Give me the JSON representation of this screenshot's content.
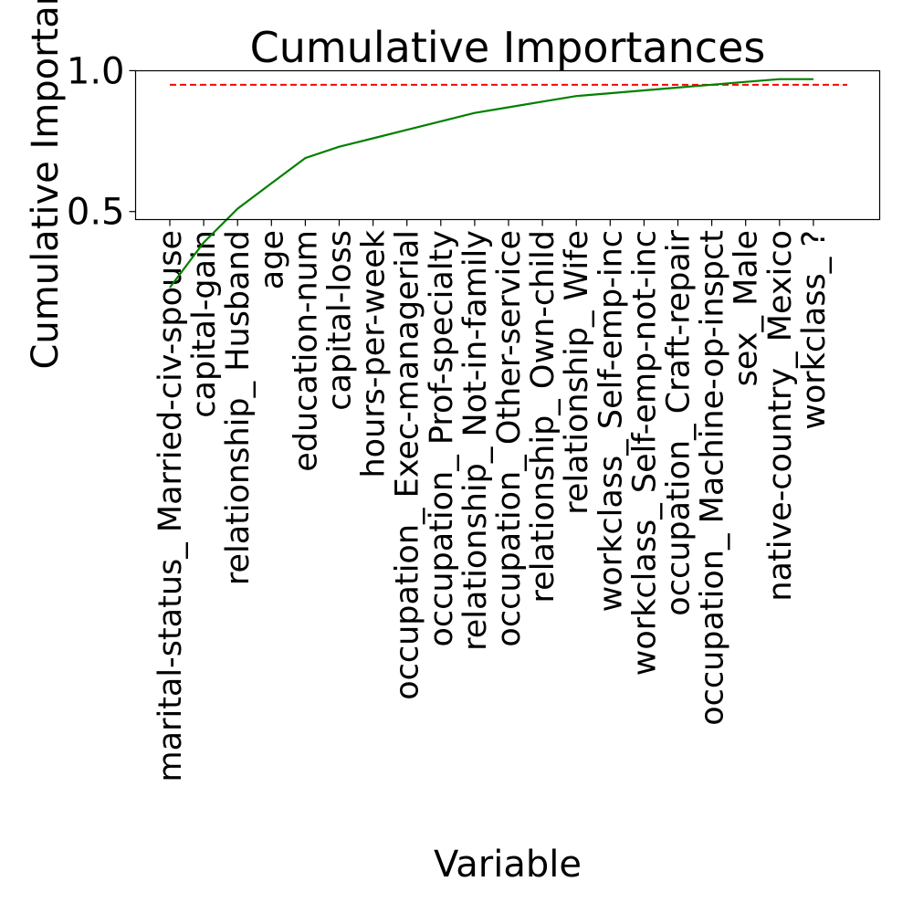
{
  "chart_data": {
    "type": "line",
    "title": "Cumulative Importances",
    "xlabel": "Variable",
    "ylabel": "Cumulative Importances",
    "categories": [
      "marital-status_ Married-civ-spouse",
      "capital-gain",
      "relationship_ Husband",
      "age",
      "education-num",
      "capital-loss",
      "hours-per-week",
      "occupation_ Exec-managerial",
      "occupation_ Prof-specialty",
      "relationship_ Not-in-family",
      "occupation_ Other-service",
      "relationship_ Own-child",
      "relationship_ Wife",
      "workclass_ Self-emp-inc",
      "workclass_ Self-emp-not-inc",
      "occupation_ Craft-repair",
      "occupation_ Machine-op-inspct",
      "sex_ Male",
      "native-country_ Mexico",
      "workclass_ ?"
    ],
    "series": [
      {
        "color": "#008000",
        "values": [
          0.23,
          0.39,
          0.51,
          0.6,
          0.69,
          0.73,
          0.76,
          0.79,
          0.82,
          0.85,
          0.87,
          0.89,
          0.91,
          0.92,
          0.93,
          0.94,
          0.95,
          0.96,
          0.97,
          0.97
        ]
      }
    ],
    "threshold": {
      "value": 0.95,
      "color": "#ff0000",
      "style": "dashed"
    },
    "yticks": [
      "0.5",
      "1.0"
    ],
    "ylim": [
      0.2,
      1.0
    ],
    "grid": false
  }
}
